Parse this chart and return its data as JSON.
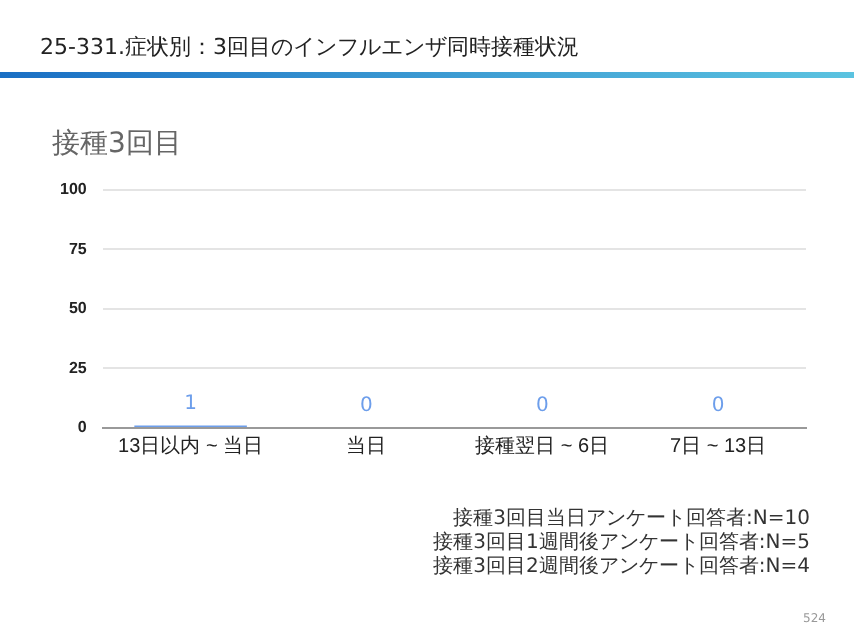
{
  "chart_data": {
    "type": "bar",
    "title": "25-331.症状別：3回目のインフルエンザ同時接種状況",
    "subtitle": "接種3回目",
    "categories": [
      "13日以内 ~ 当日",
      "当日",
      "接種翌日 ~ 6日",
      "7日 ~ 13日"
    ],
    "values": [
      1,
      0,
      0,
      0
    ],
    "color": "#6d9eeb",
    "ylim": [
      0,
      100
    ],
    "yticks": [
      0,
      25,
      50,
      75,
      100
    ],
    "grid": "y",
    "data_labels": true,
    "annotations": [
      "接種3回目当日アンケート回答者:N=10",
      "接種3回目1週間後アンケート回答者:N=5",
      "接種3回目2週間後アンケート回答者:N=4",
      "524"
    ]
  }
}
